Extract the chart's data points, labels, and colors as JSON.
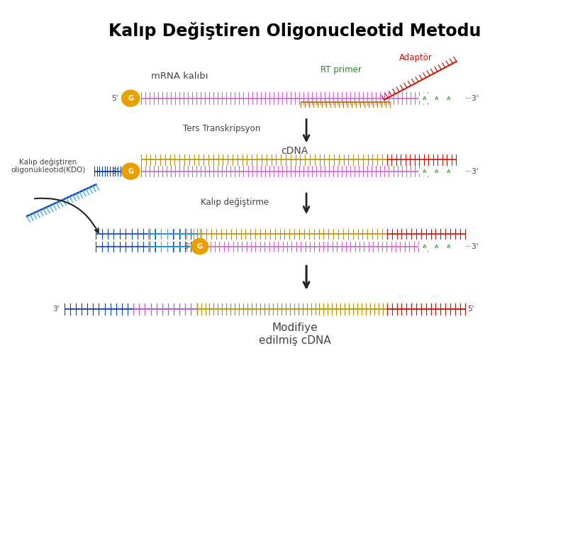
{
  "title": "Kalıp Değiştiren Oligonucleotid Metodu",
  "title_fontsize": 17,
  "title_fontweight": "bold",
  "bg_color": "#ffffff",
  "mrna_label": "mRNA kalıbı",
  "rt_primer_label": "RT primer",
  "adaptor_label": "Adaptör",
  "step1_arrow_label": "Ters Transkripsyon",
  "cdna_label": "cDNA",
  "kdo_label": "Kalıp değiştiren\noligonükleotid(KDO)",
  "step2_arrow_label": "Kalıp değiştirme",
  "modified_label": "Modifiye\nedilmiş cDNA",
  "colors": {
    "mrna_pink": "#cc66cc",
    "cdna_gold": "#b8920a",
    "adaptor_red": "#cc1100",
    "kdo_dark_blue": "#1144aa",
    "kdo_light_blue": "#44aaee",
    "g_circle": "#e8a000",
    "a_circle_border": "#44aa44",
    "text_dark": "#444444",
    "arrow_dark": "#222222",
    "rt_primer_gold": "#b07800"
  },
  "xlim": [
    0,
    10
  ],
  "ylim": [
    0,
    10
  ]
}
